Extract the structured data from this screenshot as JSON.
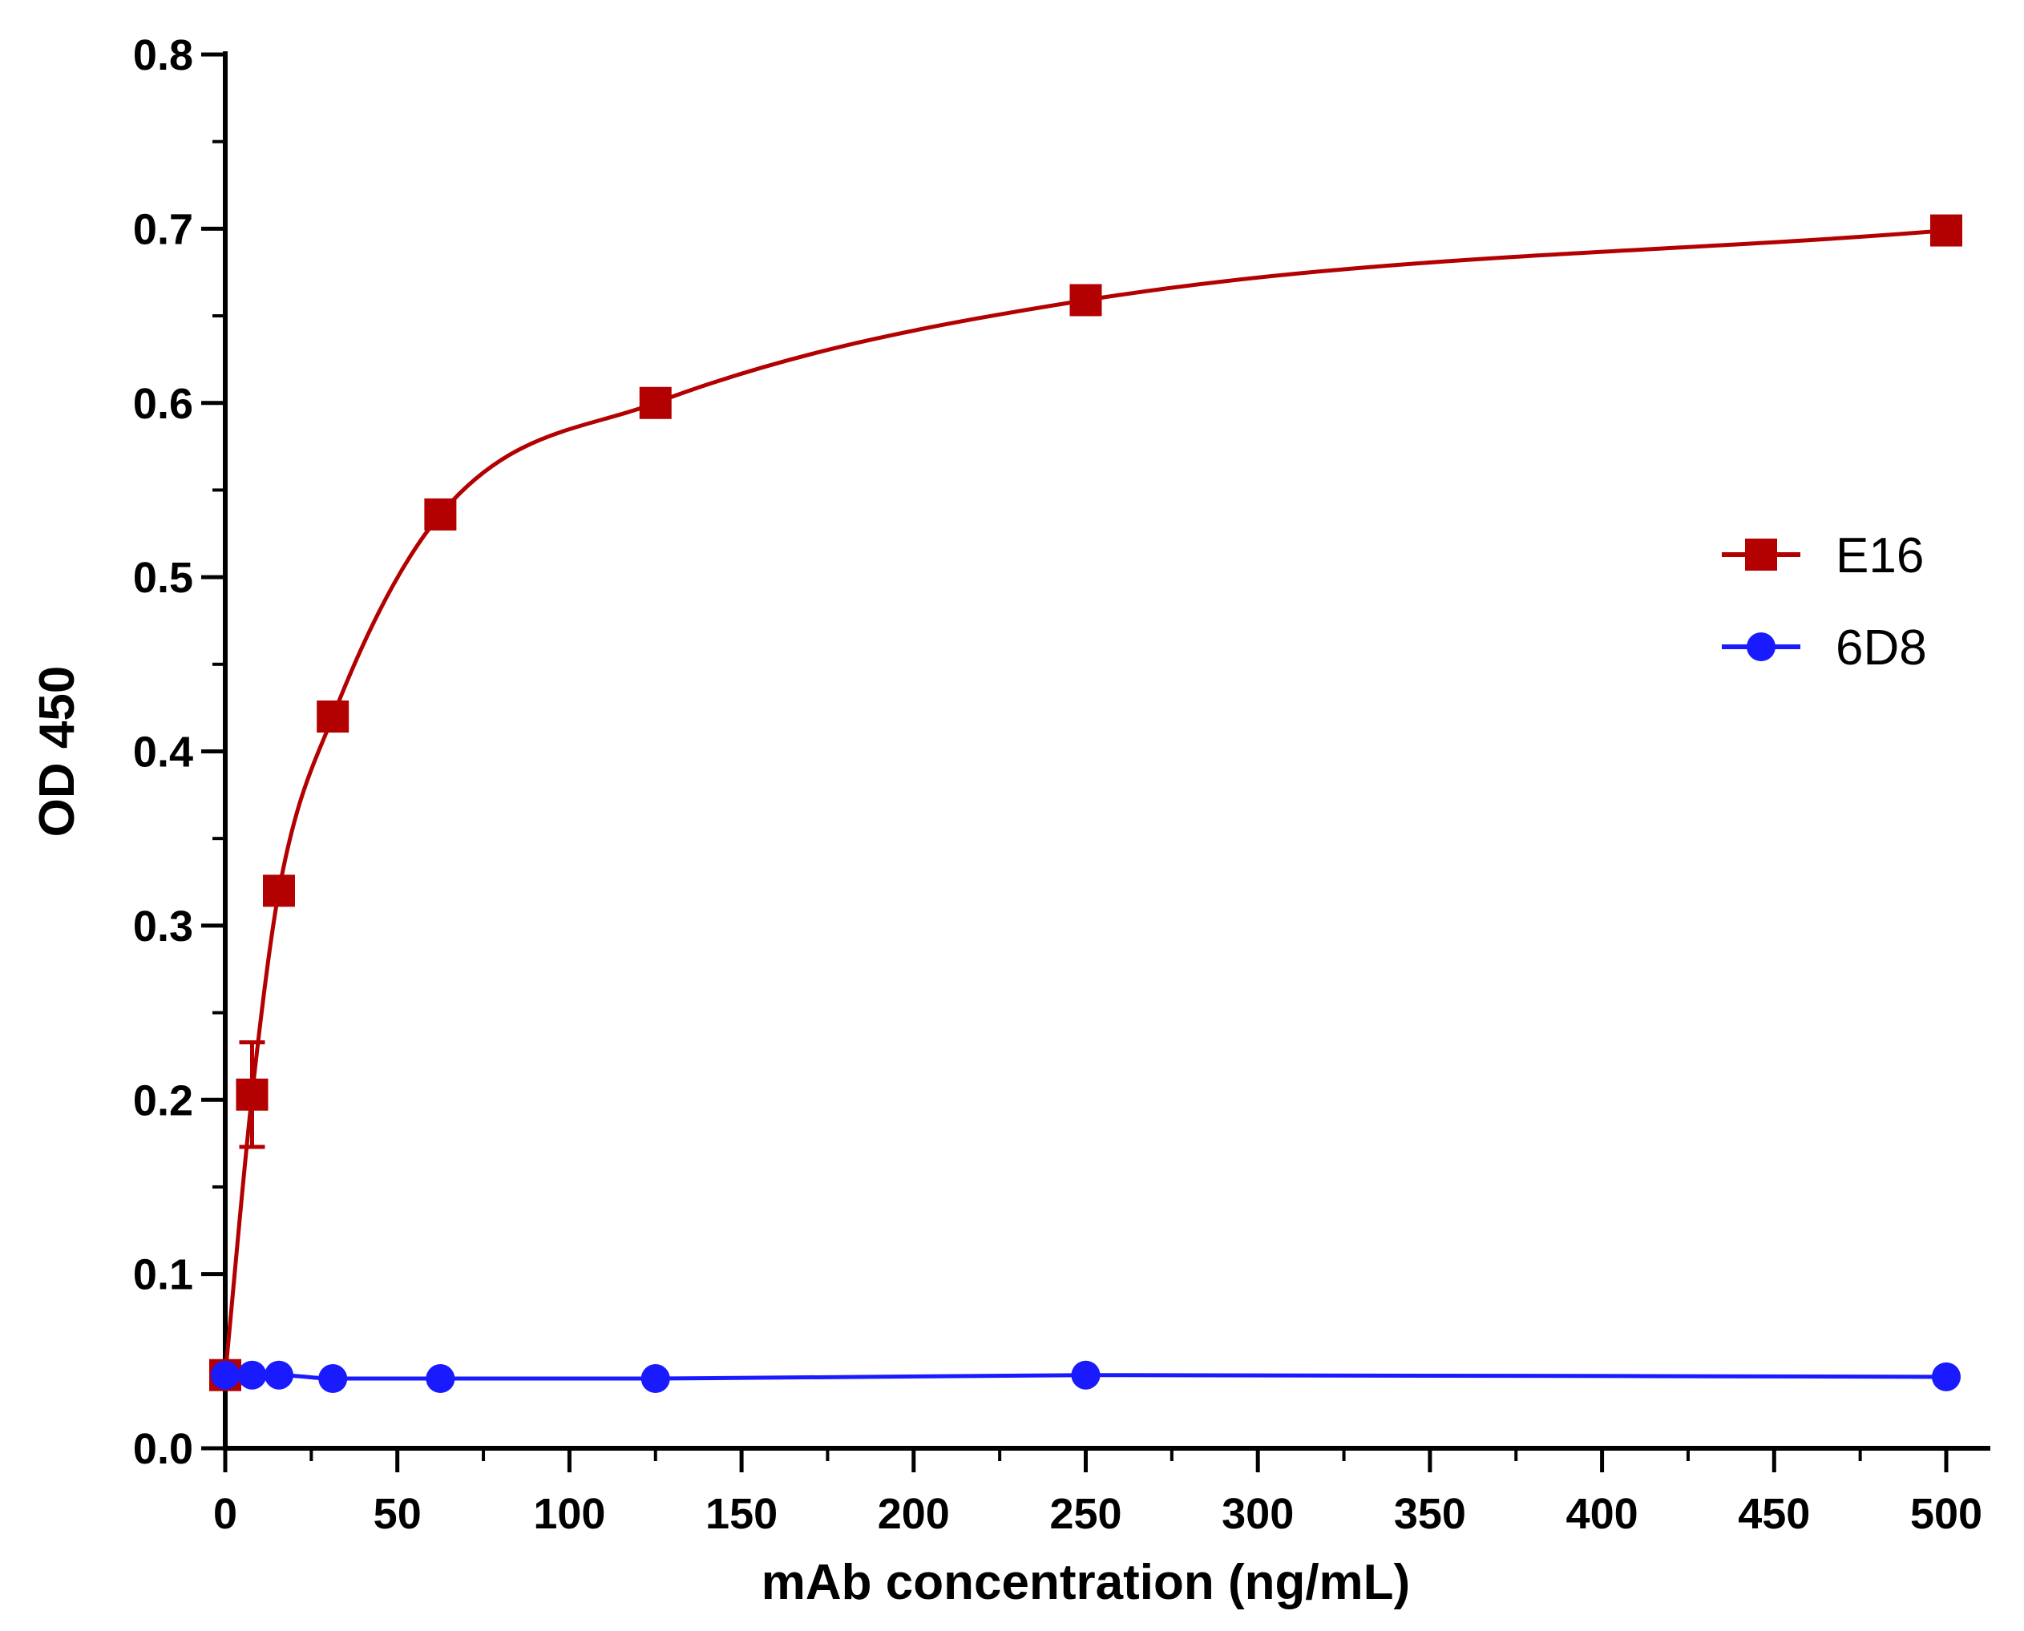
{
  "chart_data": {
    "type": "line",
    "xlabel": "mAb concentration (ng/mL)",
    "ylabel": "OD 450",
    "xlim": [
      0,
      500
    ],
    "ylim": [
      0,
      0.8
    ],
    "xticks": [
      0,
      50,
      100,
      150,
      200,
      250,
      300,
      350,
      400,
      450,
      500
    ],
    "yticks": [
      "0.0",
      "0.1",
      "0.2",
      "0.3",
      "0.4",
      "0.5",
      "0.6",
      "0.7",
      "0.8"
    ],
    "grid": false,
    "legend_position": "right",
    "series": [
      {
        "name": "E16",
        "color": "#b30000",
        "marker": "square",
        "points": [
          {
            "x": 0,
            "y": 0.042
          },
          {
            "x": 7.8,
            "y": 0.203,
            "err": 0.03
          },
          {
            "x": 15.6,
            "y": 0.32
          },
          {
            "x": 31.25,
            "y": 0.42,
            "err": 0.008
          },
          {
            "x": 62.5,
            "y": 0.536
          },
          {
            "x": 125,
            "y": 0.6,
            "err": 0.004
          },
          {
            "x": 250,
            "y": 0.659,
            "err": 0.005
          },
          {
            "x": 500,
            "y": 0.699,
            "err": 0.004
          }
        ]
      },
      {
        "name": "6D8",
        "color": "#1a1aff",
        "marker": "circle",
        "points": [
          {
            "x": 0,
            "y": 0.042
          },
          {
            "x": 7.8,
            "y": 0.042
          },
          {
            "x": 15.6,
            "y": 0.042
          },
          {
            "x": 31.25,
            "y": 0.04
          },
          {
            "x": 62.5,
            "y": 0.04
          },
          {
            "x": 125,
            "y": 0.04
          },
          {
            "x": 250,
            "y": 0.042
          },
          {
            "x": 500,
            "y": 0.041
          }
        ]
      }
    ]
  }
}
